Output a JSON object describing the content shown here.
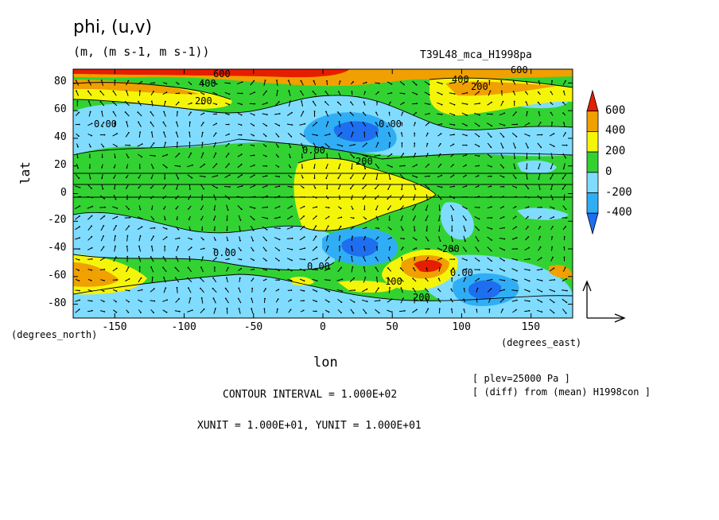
{
  "header": {
    "title": "phi, (u,v)",
    "units": "(m, (m s-1, m s-1))",
    "run": "T39L48_mca_H1998pa"
  },
  "footer": {
    "plev": "[ plev=25000 Pa ]",
    "diff": "[ (diff) from (mean) H1998con ]",
    "contour_interval": "CONTOUR INTERVAL = 1.000E+02",
    "vector_units": "XUNIT = 1.000E+01, YUNIT = 1.000E+01"
  },
  "chart_data": {
    "type": "heatmap",
    "title": "phi, (u,v)",
    "subtitle": "(m, (m s-1, m s-1))",
    "xlabel": "lon",
    "ylabel": "lat",
    "x_unit_label": "(degrees_east)",
    "y_unit_label": "(degrees_north)",
    "xlim": [
      -180,
      180
    ],
    "ylim": [
      -90,
      90
    ],
    "x_ticks": [
      -150,
      -100,
      -50,
      0,
      50,
      100,
      150
    ],
    "x_tick_labels": [
      "-150",
      "-100",
      "-50",
      "0",
      "50",
      "100",
      "150"
    ],
    "y_ticks": [
      80,
      60,
      40,
      20,
      0,
      -20,
      -40,
      -60,
      -80
    ],
    "y_tick_labels": [
      "80",
      "60",
      "40",
      "20",
      "0",
      "-20",
      "-40",
      "-60",
      "-80"
    ],
    "colorbar": {
      "levels": [
        -400,
        -200,
        0,
        200,
        400,
        600
      ],
      "labels": [
        "600",
        "400",
        "200",
        "0",
        "-200",
        "-400"
      ],
      "colors": {
        "below_-400": "#1e6ef0",
        "-400_-200": "#30aef5",
        "-200_0": "#7fdcff",
        "0_200": "#32d232",
        "200_400": "#f5f50a",
        "400_600": "#f0a000",
        "above_600": "#e61e00"
      }
    },
    "contour_labels": [
      "600",
      "400",
      "200",
      "0.00",
      "-200",
      "100"
    ],
    "features": [
      {
        "lon": 30,
        "lat": 40,
        "value": -400
      },
      {
        "lon": 30,
        "lat": -45,
        "value": -400
      },
      {
        "lon": 115,
        "lat": -65,
        "value": -400
      },
      {
        "lon": 60,
        "lat": -55,
        "value": 600
      },
      {
        "lon": 20,
        "lat": 5,
        "value": 300
      },
      {
        "lon": -170,
        "lat": -60,
        "value": 400
      },
      {
        "lon": 0,
        "lat": 88,
        "value": 600
      }
    ],
    "vector_reference_label": ""
  }
}
